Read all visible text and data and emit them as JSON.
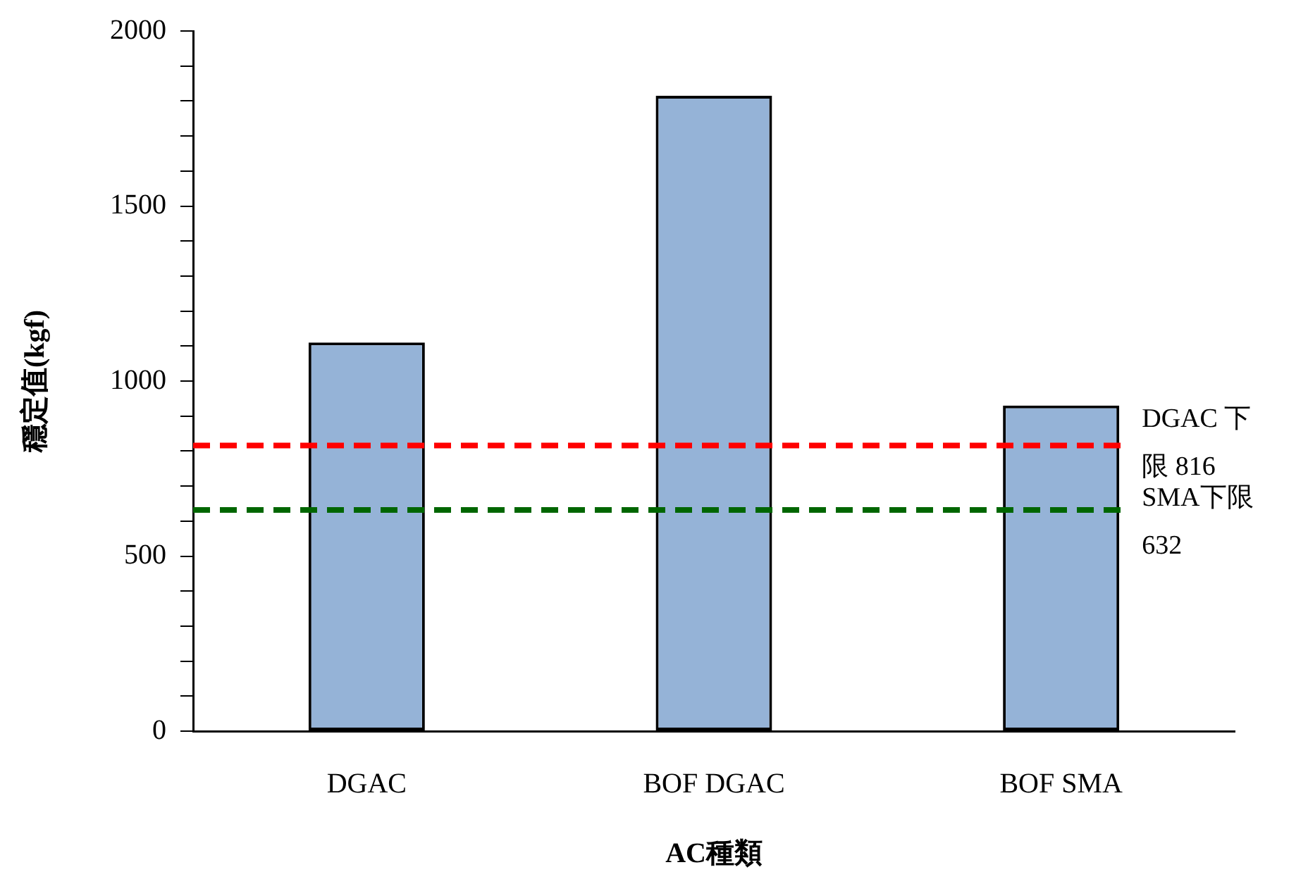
{
  "chart_data": {
    "type": "bar",
    "xlabel": "AC種類",
    "ylabel": "穩定值(kgf)",
    "categories": [
      "DGAC",
      "BOF DGAC",
      "BOF SMA"
    ],
    "series": [
      {
        "color": "#95b3d7",
        "values": [
          1110,
          1815,
          930
        ]
      }
    ],
    "ylim": [
      0,
      2000
    ],
    "yticks": [
      0,
      {
        "value": 100,
        "label": null
      },
      {
        "value": 200,
        "label": null
      },
      {
        "value": 300,
        "label": null
      },
      {
        "value": 400,
        "label": null
      },
      500,
      {
        "value": 600,
        "label": null
      },
      {
        "value": 700,
        "label": null
      },
      {
        "value": 800,
        "label": null
      },
      {
        "value": 900,
        "label": null
      },
      1000,
      {
        "value": 1100,
        "label": null
      },
      {
        "value": 1200,
        "label": null
      },
      {
        "value": 1300,
        "label": null
      },
      {
        "value": 1400,
        "label": null
      },
      1500,
      {
        "value": 1600,
        "label": null
      },
      {
        "value": 1700,
        "label": null
      },
      {
        "value": 1800,
        "label": null
      },
      {
        "value": 1900,
        "label": null
      },
      2000
    ],
    "ref_lines": [
      {
        "axis": "y",
        "value": 816,
        "label": "DGAC 下限 816",
        "color": "#ff0000",
        "line_style": "dashed"
      },
      {
        "axis": "y",
        "value": 632,
        "label": "SMA下限 632",
        "color": "#006600",
        "line_style": "dashed"
      }
    ],
    "grid": false,
    "legend": false
  }
}
